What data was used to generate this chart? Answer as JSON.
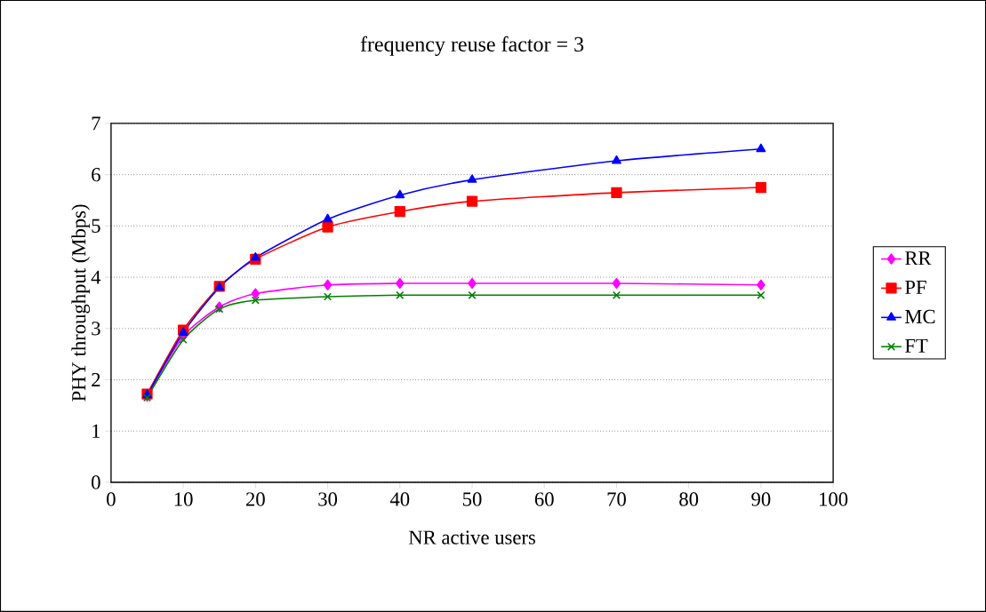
{
  "chart_data": {
    "type": "line",
    "title": "frequency reuse factor = 3",
    "xlabel": "NR active users",
    "ylabel": "PHY throughput (Mbps)",
    "x": [
      5,
      10,
      15,
      20,
      30,
      40,
      50,
      70,
      90
    ],
    "series": [
      {
        "name": "RR",
        "color": "#ff00ff",
        "marker": "diamond",
        "values": [
          1.68,
          2.85,
          3.42,
          3.68,
          3.85,
          3.88,
          3.88,
          3.88,
          3.85
        ]
      },
      {
        "name": "PF",
        "color": "#ff0000",
        "marker": "square",
        "values": [
          1.72,
          2.97,
          3.82,
          4.35,
          4.98,
          5.28,
          5.48,
          5.65,
          5.75
        ]
      },
      {
        "name": "MC",
        "color": "#0000ff",
        "marker": "triangle",
        "values": [
          1.7,
          2.92,
          3.8,
          4.38,
          5.13,
          5.6,
          5.9,
          6.27,
          6.5
        ]
      },
      {
        "name": "FT",
        "color": "#008000",
        "marker": "cross",
        "values": [
          1.65,
          2.78,
          3.38,
          3.55,
          3.62,
          3.65,
          3.65,
          3.65,
          3.65
        ]
      }
    ],
    "xlim": [
      0,
      100
    ],
    "xticks": [
      0,
      10,
      20,
      30,
      40,
      50,
      60,
      70,
      80,
      90,
      100
    ],
    "ylim": [
      0,
      7
    ],
    "yticks": [
      0,
      1,
      2,
      3,
      4,
      5,
      6,
      7
    ],
    "grid": "y",
    "legend": "right",
    "line_style": "solid"
  }
}
